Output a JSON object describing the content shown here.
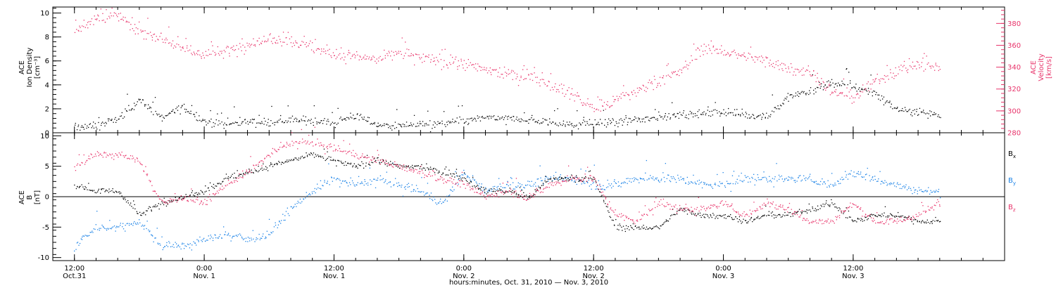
{
  "chart_data": [
    {
      "type": "scatter",
      "panel": "top",
      "left_axis": {
        "label_lines": [
          "ACE",
          "Ion Density",
          "[cm⁻³]"
        ],
        "ylim": [
          0,
          10.5
        ],
        "ticks": [
          0,
          2,
          4,
          6,
          8,
          10
        ]
      },
      "right_axis": {
        "label_lines": [
          "ACE",
          "Velocity",
          "[km/s]"
        ],
        "ylim": [
          280,
          395
        ],
        "ticks": [
          280,
          300,
          320,
          340,
          360,
          380
        ],
        "color": "#e8336a"
      },
      "series": [
        {
          "axis": "left",
          "color": "#000000",
          "x": [
            -12,
            -10,
            -8,
            -6,
            -4,
            -2,
            0,
            2,
            4,
            6,
            8,
            10,
            12,
            14,
            16,
            18,
            20,
            22,
            24,
            26,
            28,
            30,
            32,
            34,
            36,
            38,
            40,
            42,
            44,
            46,
            48,
            50,
            52,
            54,
            56,
            58,
            60,
            62,
            64,
            66,
            68
          ],
          "y": [
            0.5,
            0.6,
            1.2,
            2.8,
            1.3,
            2.2,
            1.0,
            0.7,
            1.0,
            0.9,
            1.1,
            1.0,
            0.9,
            1.5,
            0.7,
            0.6,
            0.7,
            0.8,
            1.0,
            1.3,
            1.2,
            1.1,
            0.9,
            0.7,
            0.8,
            0.9,
            1.1,
            1.3,
            1.6,
            1.6,
            1.8,
            1.5,
            1.4,
            3.0,
            3.5,
            4.2,
            3.9,
            3.3,
            2.0,
            1.8,
            1.5
          ]
        },
        {
          "axis": "right",
          "color": "#e8336a",
          "x": [
            -12,
            -10,
            -8,
            -6,
            -4,
            -2,
            0,
            2,
            4,
            6,
            8,
            10,
            12,
            14,
            16,
            18,
            20,
            22,
            24,
            26,
            28,
            30,
            32,
            34,
            36,
            38,
            40,
            42,
            44,
            46,
            48,
            50,
            52,
            54,
            56,
            58,
            60,
            62,
            64,
            66,
            68
          ],
          "y": [
            375,
            384,
            388,
            373,
            368,
            357,
            352,
            354,
            362,
            366,
            365,
            358,
            352,
            349,
            347,
            354,
            349,
            345,
            343,
            338,
            334,
            331,
            325,
            316,
            302,
            310,
            318,
            328,
            336,
            358,
            355,
            350,
            346,
            340,
            336,
            318,
            312,
            327,
            338,
            343,
            339
          ]
        }
      ]
    },
    {
      "type": "scatter",
      "panel": "bottom",
      "left_axis": {
        "label_lines": [
          "ACE",
          "B",
          "[nT]"
        ],
        "ylim": [
          -10.5,
          10.5
        ],
        "ticks": [
          -10,
          -5,
          0,
          5,
          10
        ]
      },
      "legend": [
        {
          "text": "B",
          "sub": "x",
          "color": "#000000"
        },
        {
          "text": "B",
          "sub": "y",
          "color": "#1a82e6"
        },
        {
          "text": "B",
          "sub": "z",
          "color": "#e8336a"
        }
      ],
      "series": [
        {
          "name": "Bx",
          "color": "#000000",
          "x": [
            -12,
            -10,
            -8,
            -6,
            -4,
            -2,
            0,
            2,
            4,
            6,
            8,
            10,
            12,
            14,
            16,
            18,
            20,
            22,
            24,
            26,
            28,
            30,
            32,
            34,
            36,
            38,
            40,
            42,
            44,
            46,
            48,
            50,
            52,
            54,
            56,
            58,
            60,
            62,
            64,
            66,
            68
          ],
          "y": [
            2,
            1,
            1,
            -3,
            -1,
            0,
            1,
            3,
            4,
            5,
            6,
            7,
            6,
            5,
            6,
            5,
            5,
            4,
            3,
            1,
            1,
            0,
            3,
            3,
            3,
            -5,
            -5,
            -5,
            -2,
            -3,
            -3,
            -4,
            -3,
            -3,
            -2,
            -1,
            -4,
            -3,
            -3,
            -4,
            -4
          ]
        },
        {
          "name": "By",
          "color": "#1a82e6",
          "x": [
            -12,
            -10,
            -8,
            -6,
            -4,
            -2,
            0,
            2,
            4,
            6,
            8,
            10,
            12,
            14,
            16,
            18,
            20,
            22,
            24,
            26,
            28,
            30,
            32,
            34,
            36,
            38,
            40,
            42,
            44,
            46,
            48,
            50,
            52,
            54,
            56,
            58,
            60,
            62,
            64,
            66,
            68
          ],
          "y": [
            -8,
            -5,
            -5,
            -4,
            -8,
            -8,
            -7,
            -6,
            -7,
            -6,
            -2,
            1,
            3,
            2,
            3,
            2,
            1,
            -1,
            4,
            1,
            2,
            2,
            3,
            3,
            2,
            2,
            3,
            3,
            3,
            2,
            2,
            3,
            3,
            3,
            3,
            2,
            4,
            3,
            2,
            1,
            1
          ]
        },
        {
          "name": "Bz",
          "color": "#e8336a",
          "x": [
            -12,
            -10,
            -8,
            -6,
            -4,
            -2,
            0,
            2,
            4,
            6,
            8,
            10,
            12,
            14,
            16,
            18,
            20,
            22,
            24,
            26,
            28,
            30,
            32,
            34,
            36,
            38,
            40,
            42,
            44,
            46,
            48,
            50,
            52,
            54,
            56,
            58,
            60,
            62,
            64,
            66,
            68
          ],
          "y": [
            5,
            7,
            7,
            6,
            -1,
            0,
            -1,
            2,
            4,
            7,
            9,
            9,
            8,
            7,
            6,
            5,
            4,
            3,
            2,
            0,
            1,
            0,
            2,
            3,
            3,
            -3,
            -4,
            -1,
            -2,
            -2,
            -1,
            -3,
            -1,
            -2,
            -4,
            -4,
            -1,
            -4,
            -4,
            -3,
            -1
          ]
        }
      ]
    }
  ],
  "x_axis": {
    "xlim": [
      -14,
      74
    ],
    "ticks": [
      {
        "h": -12,
        "time": "12:00",
        "date": "Oct.31"
      },
      {
        "h": 0,
        "time": "0:00",
        "date": "Nov. 1"
      },
      {
        "h": 12,
        "time": "12:00",
        "date": "Nov. 1"
      },
      {
        "h": 24,
        "time": "0:00",
        "date": "Nov. 2"
      },
      {
        "h": 36,
        "time": "12:00",
        "date": "Nov. 2"
      },
      {
        "h": 48,
        "time": "0:00",
        "date": "Nov. 3"
      },
      {
        "h": 60,
        "time": "12:00",
        "date": "Nov. 3"
      }
    ],
    "title": "hours:minutes, Oct. 31, 2010 — Nov.  3, 2010"
  }
}
